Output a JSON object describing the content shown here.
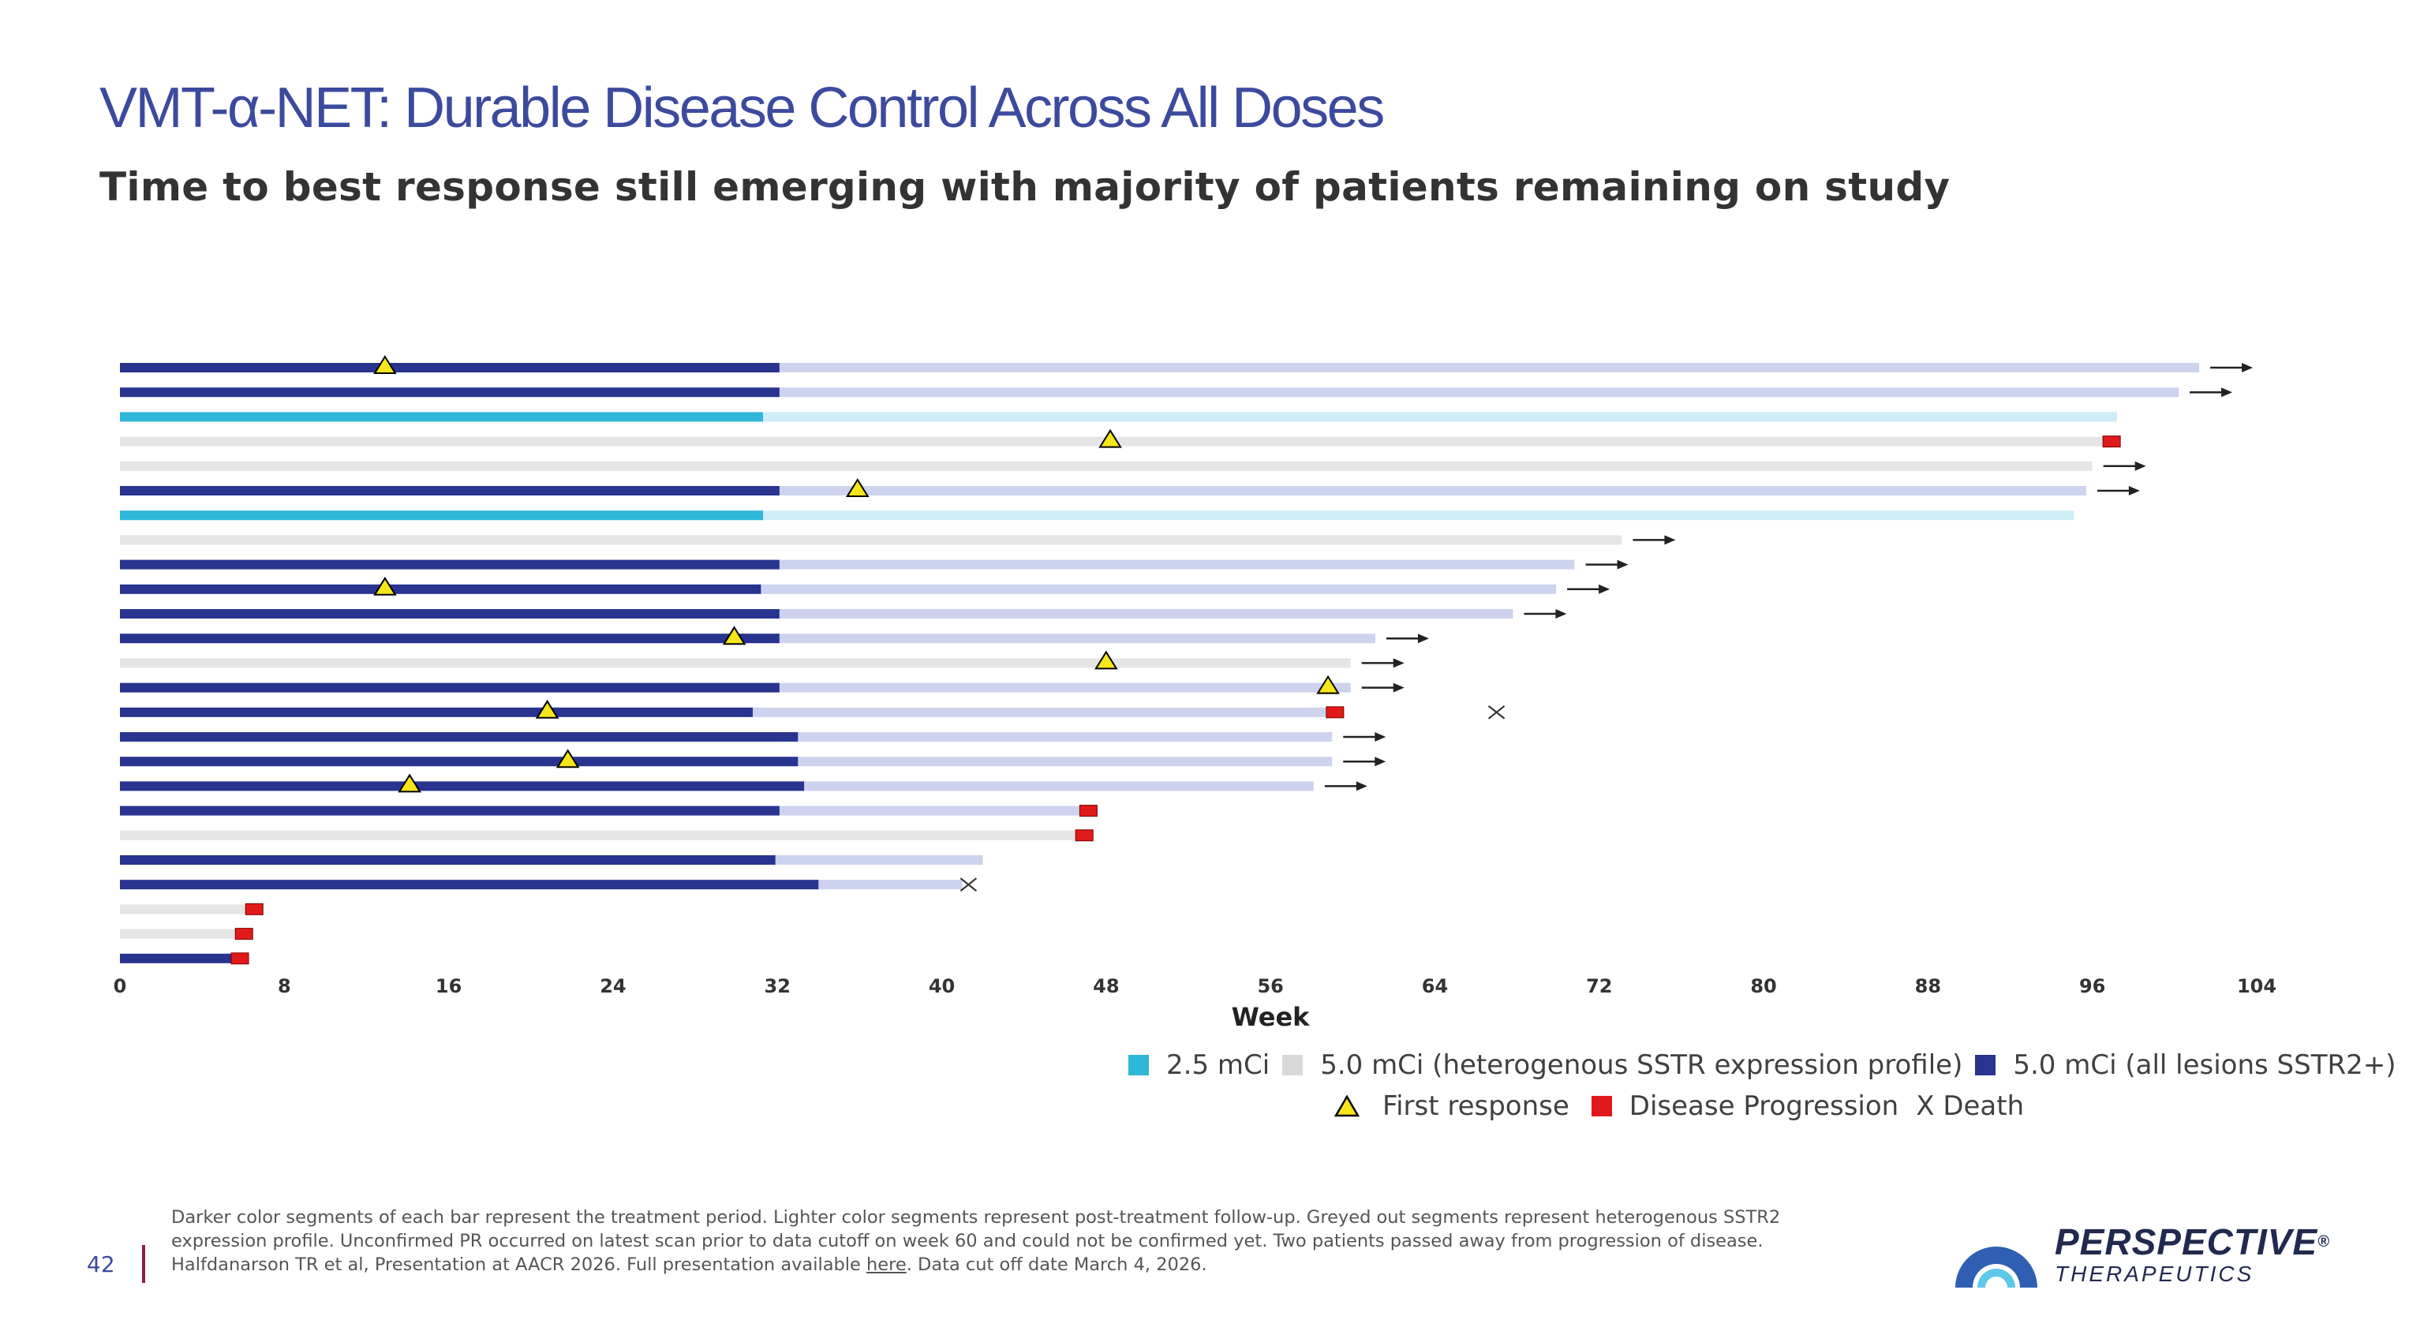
{
  "header": {
    "title": "VMT-α-NET: Durable Disease Control Across All Doses",
    "subtitle": "Time to best response still emerging with majority of patients remaining on study"
  },
  "colors": {
    "title": "#3c4a9e",
    "dose_2_5_treat": "#2eb7d8",
    "dose_2_5_follow": "#cdeef7",
    "dose_5_0_het_treat": "#d9d9d9",
    "dose_5_0_het_follow": "#e5e5e5",
    "dose_5_0_all_treat": "#28348f",
    "dose_5_0_all_follow": "#cdd2ee",
    "first_response": "#f5e51a",
    "progression": "#e01a1a"
  },
  "chart_data": {
    "type": "swimmer",
    "xlabel": "Week",
    "xlim": [
      0,
      104
    ],
    "xticks": [
      0,
      8,
      16,
      24,
      32,
      40,
      48,
      56,
      64,
      72,
      80,
      88,
      96,
      104
    ],
    "legend": {
      "groups": [
        {
          "key": "2.5",
          "label": "2.5 mCi"
        },
        {
          "key": "het",
          "label": "5.0 mCi (heterogenous SSTR expression profile)"
        },
        {
          "key": "all",
          "label": "5.0 mCi (all lesions SSTR2+)"
        }
      ],
      "markers": [
        {
          "key": "response",
          "label": "First response"
        },
        {
          "key": "progression",
          "label": "Disease Progression"
        },
        {
          "key": "death",
          "label": "X Death"
        }
      ]
    },
    "patients": [
      {
        "group": "all",
        "treatment_end": 32.1,
        "total": 101.2,
        "ongoing": true,
        "response": 12.9
      },
      {
        "group": "all",
        "treatment_end": 32.1,
        "total": 100.2,
        "ongoing": true
      },
      {
        "group": "2.5",
        "treatment_end": 31.3,
        "total": 97.2,
        "ongoing": false
      },
      {
        "group": "het",
        "treatment_end": 0,
        "total": 96.9,
        "ongoing": false,
        "response": 48.2,
        "progression": 96.9
      },
      {
        "group": "het",
        "treatment_end": 0,
        "total": 96.0,
        "ongoing": true
      },
      {
        "group": "all",
        "treatment_end": 32.1,
        "total": 95.7,
        "ongoing": true,
        "response": 35.9
      },
      {
        "group": "2.5",
        "treatment_end": 31.3,
        "total": 95.1,
        "ongoing": false
      },
      {
        "group": "het",
        "treatment_end": 0,
        "total": 73.1,
        "ongoing": true
      },
      {
        "group": "all",
        "treatment_end": 32.1,
        "total": 70.8,
        "ongoing": true
      },
      {
        "group": "all",
        "treatment_end": 31.2,
        "total": 69.9,
        "ongoing": true,
        "response": 12.9
      },
      {
        "group": "all",
        "treatment_end": 32.1,
        "total": 67.8,
        "ongoing": true
      },
      {
        "group": "all",
        "treatment_end": 32.1,
        "total": 61.1,
        "ongoing": true,
        "response": 29.9
      },
      {
        "group": "het",
        "treatment_end": 0,
        "total": 59.9,
        "ongoing": true,
        "response": 48.0
      },
      {
        "group": "all",
        "treatment_end": 32.1,
        "total": 59.9,
        "ongoing": true,
        "response": 58.8
      },
      {
        "group": "all",
        "treatment_end": 30.8,
        "total": 59.1,
        "ongoing": false,
        "response": 20.8,
        "progression": 59.1,
        "death": 67.0
      },
      {
        "group": "all",
        "treatment_end": 33.0,
        "total": 59.0,
        "ongoing": true
      },
      {
        "group": "all",
        "treatment_end": 33.0,
        "total": 59.0,
        "ongoing": true,
        "response": 21.8
      },
      {
        "group": "all",
        "treatment_end": 33.3,
        "total": 58.1,
        "ongoing": true,
        "response": 14.1
      },
      {
        "group": "all",
        "treatment_end": 32.1,
        "total": 47.1,
        "ongoing": false,
        "progression": 47.1
      },
      {
        "group": "het",
        "treatment_end": 0,
        "total": 46.9,
        "ongoing": false,
        "progression": 46.9
      },
      {
        "group": "all",
        "treatment_end": 31.9,
        "total": 42.0,
        "ongoing": false
      },
      {
        "group": "all",
        "treatment_end": 34.0,
        "total": 41.0,
        "ongoing": false,
        "death": 41.3
      },
      {
        "group": "het",
        "treatment_end": 0,
        "total": 6.5,
        "ongoing": false,
        "progression": 6.5
      },
      {
        "group": "het",
        "treatment_end": 0,
        "total": 6.0,
        "ongoing": false,
        "progression": 6.0
      },
      {
        "group": "all",
        "treatment_end": 5.6,
        "total": 5.8,
        "ongoing": false,
        "progression": 5.8
      }
    ]
  },
  "footnote": {
    "line1": "Darker color segments of each bar represent the treatment period. Lighter color segments represent post-treatment follow-up. Greyed out segments represent heterogenous SSTR2",
    "line2": "expression profile. Unconfirmed PR occurred on latest scan prior to data cutoff on week 60 and could not be confirmed yet. Two patients passed away from progression of disease.",
    "line3_pre": "Halfdanarson TR et al, Presentation at AACR 2026. Full presentation available ",
    "line3_link": "here",
    "line3_post": ". Data cut off date March 4, 2026."
  },
  "page_number": "42",
  "logo": {
    "name": "PERSPECTIVE",
    "trademark": "®",
    "sub": "THERAPEUTICS"
  }
}
